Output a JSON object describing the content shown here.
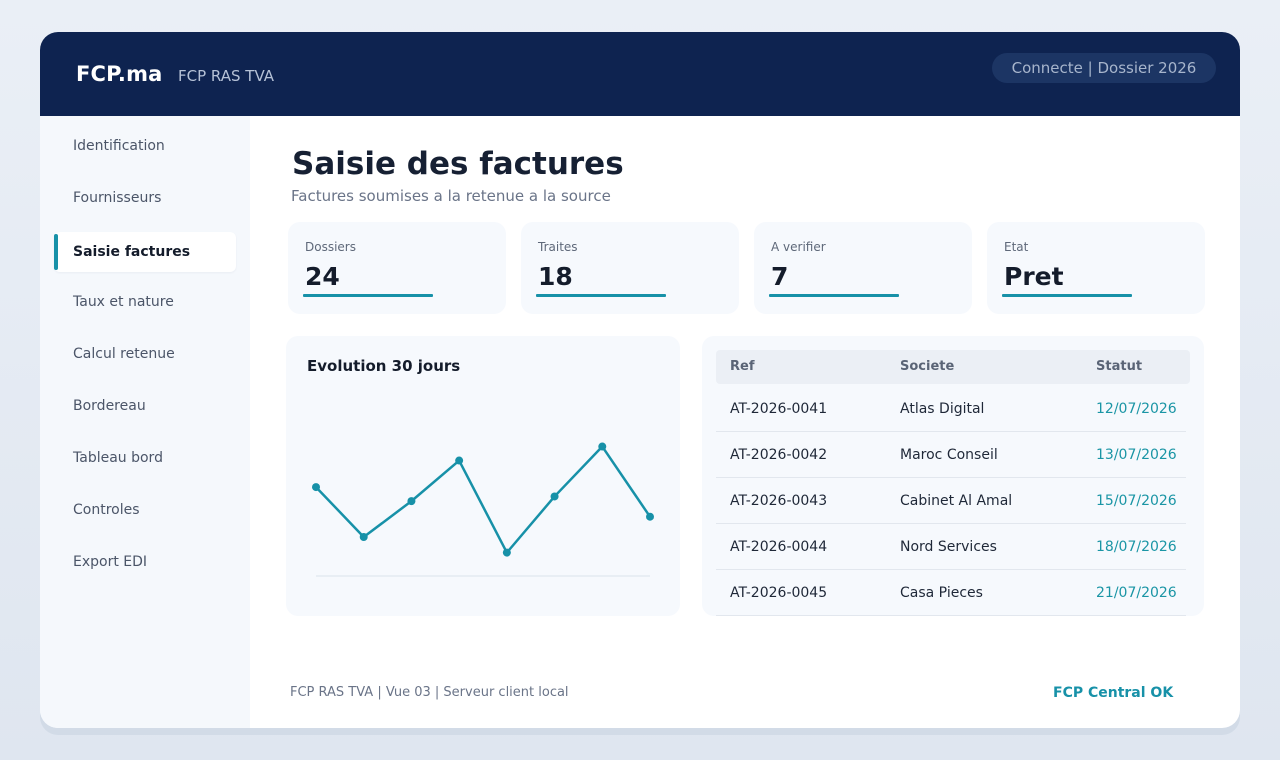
{
  "header": {
    "brand": "FCP.ma",
    "subtitle": "FCP RAS TVA",
    "status": "Connecte | Dossier 2026"
  },
  "sidebar": {
    "items": [
      {
        "label": "Identification",
        "active": false
      },
      {
        "label": "Fournisseurs",
        "active": false
      },
      {
        "label": "Saisie factures",
        "active": true
      },
      {
        "label": "Taux et nature",
        "active": false
      },
      {
        "label": "Calcul retenue",
        "active": false
      },
      {
        "label": "Bordereau",
        "active": false
      },
      {
        "label": "Tableau bord",
        "active": false
      },
      {
        "label": "Controles",
        "active": false
      },
      {
        "label": "Export EDI",
        "active": false
      }
    ]
  },
  "main": {
    "title": "Saisie des factures",
    "subtitle": "Factures soumises a la retenue a la source",
    "kpis": [
      {
        "label": "Dossiers",
        "value": "24"
      },
      {
        "label": "Traites",
        "value": "18"
      },
      {
        "label": "A verifier",
        "value": "7"
      },
      {
        "label": "Etat",
        "value": "Pret"
      }
    ]
  },
  "chart_data": {
    "type": "line",
    "title": "Evolution 30 jours",
    "x": [
      1,
      2,
      3,
      4,
      5,
      6,
      7,
      8
    ],
    "series": [
      {
        "values": [
          57,
          25,
          48,
          74,
          15,
          51,
          83,
          38
        ]
      }
    ],
    "ylim": [
      0,
      100
    ],
    "grid": false,
    "color": "#1791a8"
  },
  "table": {
    "headers": [
      "Ref",
      "Societe",
      "Statut"
    ],
    "rows": [
      [
        "AT-2026-0041",
        "Atlas Digital",
        "12/07/2026"
      ],
      [
        "AT-2026-0042",
        "Maroc Conseil",
        "13/07/2026"
      ],
      [
        "AT-2026-0043",
        "Cabinet Al Amal",
        "15/07/2026"
      ],
      [
        "AT-2026-0044",
        "Nord Services",
        "18/07/2026"
      ],
      [
        "AT-2026-0045",
        "Casa Pieces",
        "21/07/2026"
      ]
    ]
  },
  "footer": {
    "info": "FCP RAS TVA | Vue 03 | Serveur client local",
    "status": "FCP Central OK"
  },
  "colors": {
    "header_bg": "#0e2350",
    "accent": "#1791a8",
    "date_text": "#1a95a5"
  }
}
